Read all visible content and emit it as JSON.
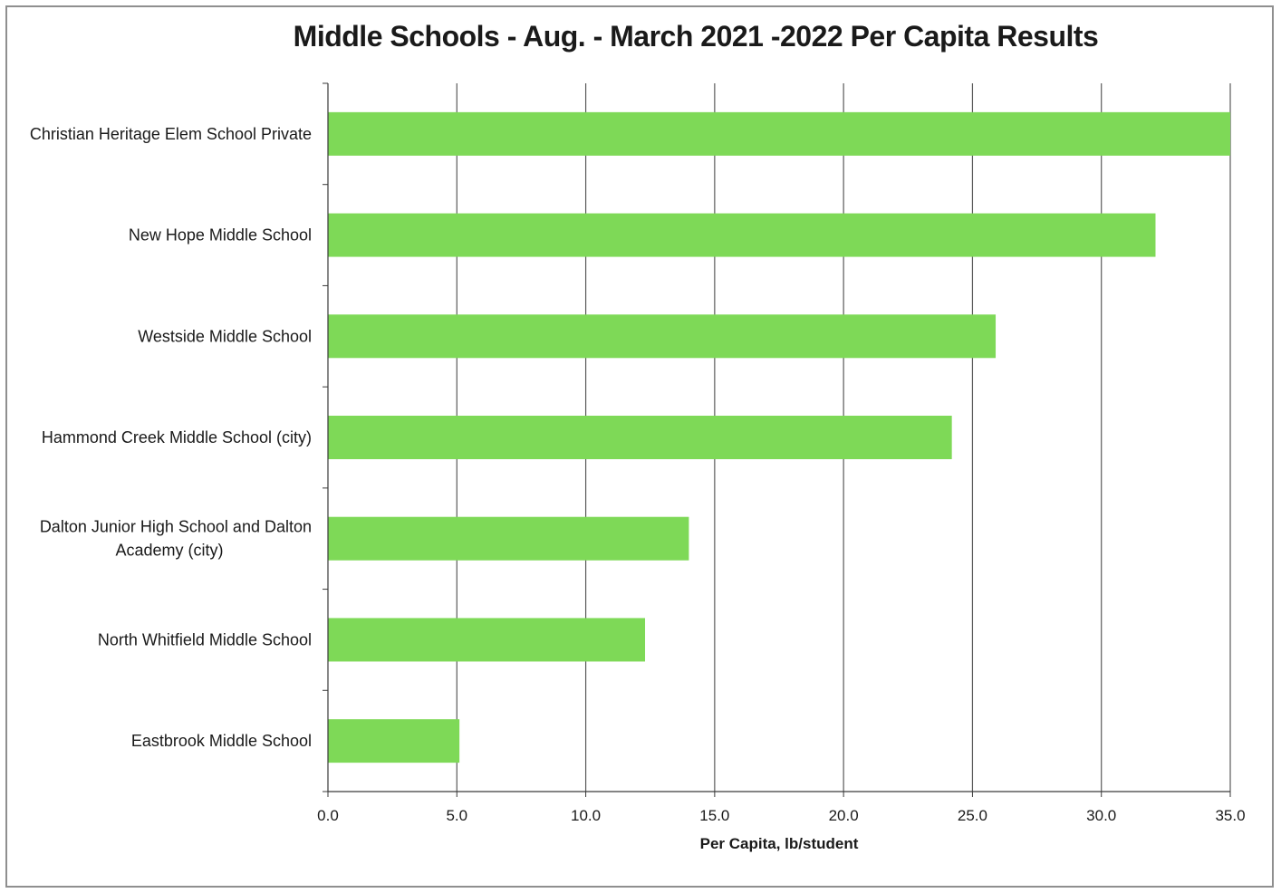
{
  "chart_data": {
    "type": "bar",
    "orientation": "horizontal",
    "title": "Middle Schools - Aug. - March 2021 -2022 Per Capita Results",
    "categories": [
      "Christian Heritage Elem School Private",
      "New Hope Middle School",
      "Westside Middle School",
      "Hammond Creek Middle School (city)",
      "Dalton Junior High School and Dalton Academy (city)",
      "North Whitfield Middle School",
      "Eastbrook Middle School"
    ],
    "category_lines": [
      [
        "Christian Heritage Elem School Private"
      ],
      [
        "New Hope Middle School"
      ],
      [
        "Westside Middle School"
      ],
      [
        "Hammond Creek Middle School (city)"
      ],
      [
        "Dalton Junior High School and Dalton",
        "Academy (city)"
      ],
      [
        "North Whitfield Middle School"
      ],
      [
        "Eastbrook Middle School"
      ]
    ],
    "values": [
      35.0,
      32.1,
      25.9,
      24.2,
      14.0,
      12.3,
      5.1
    ],
    "xlabel": "Per Capita, lb/student",
    "ylabel": "",
    "xlim": [
      0,
      35
    ],
    "xticks": [
      "0.0",
      "5.0",
      "10.0",
      "15.0",
      "20.0",
      "25.0",
      "30.0",
      "35.0"
    ],
    "grid": "vertical",
    "legend": "none",
    "bar_color": "#7ed957"
  }
}
